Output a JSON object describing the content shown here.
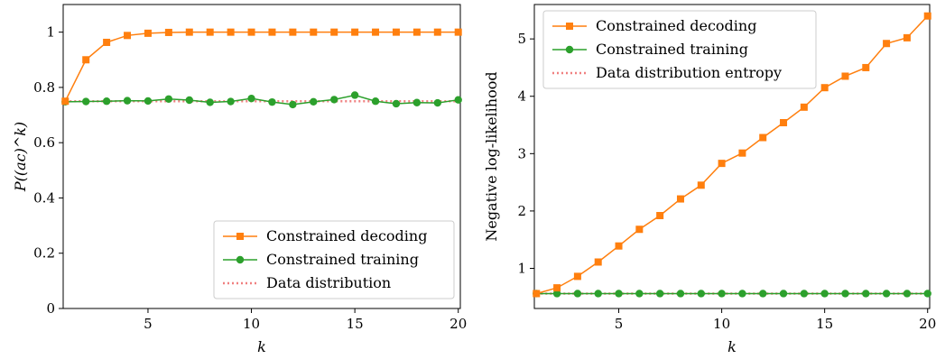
{
  "colors": {
    "decoding": "#ff7f0e",
    "training": "#2ca02c",
    "entropy": "#f08080",
    "frame": "#000000"
  },
  "chart_data": [
    {
      "type": "line",
      "xlabel": "k",
      "ylabel": "P((ac)^k)",
      "xlim": [
        0.9,
        20.1
      ],
      "ylim": [
        0,
        1.1
      ],
      "xticks": [
        5,
        10,
        15,
        20
      ],
      "yticks": [
        0,
        0.2,
        0.4,
        0.6,
        0.8,
        1
      ],
      "xtick_labels": [
        "5",
        "10",
        "15",
        "20"
      ],
      "ytick_labels": [
        "0",
        "0.2",
        "0.4",
        "0.6",
        "0.8",
        "1"
      ],
      "legend_position": "lower-right",
      "x": [
        1,
        2,
        3,
        4,
        5,
        6,
        7,
        8,
        9,
        10,
        11,
        12,
        13,
        14,
        15,
        16,
        17,
        18,
        19,
        20
      ],
      "series": [
        {
          "name": "Constrained decoding",
          "marker": "square",
          "color_key": "decoding",
          "values": [
            0.75,
            0.9,
            0.963,
            0.988,
            0.996,
            0.999,
            1.0,
            1.0,
            1.0,
            1.0,
            1.0,
            1.0,
            1.0,
            1.0,
            1.0,
            1.0,
            1.0,
            1.0,
            1.0,
            1.0
          ]
        },
        {
          "name": "Constrained training",
          "marker": "circle",
          "color_key": "training",
          "values": [
            0.748,
            0.749,
            0.75,
            0.752,
            0.751,
            0.758,
            0.754,
            0.746,
            0.749,
            0.76,
            0.747,
            0.738,
            0.748,
            0.756,
            0.772,
            0.75,
            0.741,
            0.745,
            0.744,
            0.755
          ]
        },
        {
          "name": "Data distribution",
          "marker": "none",
          "style": "dotted",
          "color_key": "entropy",
          "values": [
            0.75,
            0.75,
            0.75,
            0.75,
            0.75,
            0.75,
            0.75,
            0.75,
            0.75,
            0.75,
            0.75,
            0.75,
            0.75,
            0.75,
            0.75,
            0.75,
            0.75,
            0.75,
            0.75,
            0.75
          ]
        }
      ]
    },
    {
      "type": "line",
      "xlabel": "k",
      "ylabel": "Negative log-likelihood",
      "xlim": [
        0.9,
        20.1
      ],
      "ylim": [
        0.3,
        5.6
      ],
      "xticks": [
        5,
        10,
        15,
        20
      ],
      "yticks": [
        1,
        2,
        3,
        4,
        5
      ],
      "xtick_labels": [
        "5",
        "10",
        "15",
        "20"
      ],
      "ytick_labels": [
        "1",
        "2",
        "3",
        "4",
        "5"
      ],
      "legend_position": "upper-left",
      "x": [
        1,
        2,
        3,
        4,
        5,
        6,
        7,
        8,
        9,
        10,
        11,
        12,
        13,
        14,
        15,
        16,
        17,
        18,
        19,
        20
      ],
      "series": [
        {
          "name": "Constrained decoding",
          "marker": "square",
          "color_key": "decoding",
          "values": [
            0.56,
            0.66,
            0.86,
            1.11,
            1.39,
            1.68,
            1.92,
            2.21,
            2.45,
            2.83,
            3.01,
            3.28,
            3.54,
            3.81,
            4.15,
            4.35,
            4.5,
            4.92,
            5.02,
            5.4
          ]
        },
        {
          "name": "Constrained training",
          "marker": "circle",
          "color_key": "training",
          "values": [
            0.56,
            0.56,
            0.56,
            0.56,
            0.56,
            0.56,
            0.56,
            0.56,
            0.56,
            0.56,
            0.56,
            0.56,
            0.56,
            0.56,
            0.56,
            0.56,
            0.56,
            0.56,
            0.56,
            0.56
          ]
        },
        {
          "name": "Data distribution entropy",
          "marker": "none",
          "style": "dotted",
          "color_key": "entropy",
          "values": [
            0.56,
            0.56,
            0.56,
            0.56,
            0.56,
            0.56,
            0.56,
            0.56,
            0.56,
            0.56,
            0.56,
            0.56,
            0.56,
            0.56,
            0.56,
            0.56,
            0.56,
            0.56,
            0.56,
            0.56
          ]
        }
      ]
    }
  ]
}
